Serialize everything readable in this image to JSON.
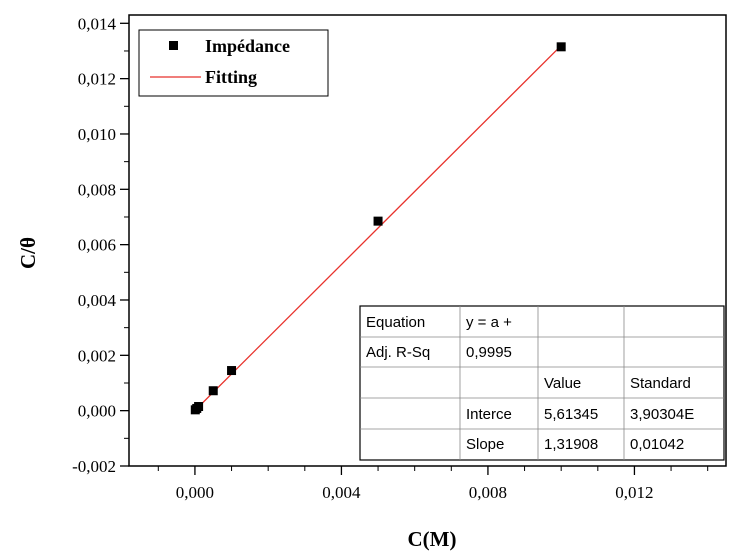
{
  "chart_data": {
    "type": "scatter",
    "xlabel": "C(M)",
    "ylabel": "C/θ",
    "xlim": [
      -0.0018,
      0.0145
    ],
    "ylim": [
      -0.002,
      0.0143
    ],
    "x_ticks": [
      {
        "value": 0.0,
        "label": "0,000"
      },
      {
        "value": 0.004,
        "label": "0,004"
      },
      {
        "value": 0.008,
        "label": "0,008"
      },
      {
        "value": 0.012,
        "label": "0,012"
      }
    ],
    "y_ticks": [
      {
        "value": -0.002,
        "label": "-0,002"
      },
      {
        "value": 0.0,
        "label": "0,000"
      },
      {
        "value": 0.002,
        "label": "0,002"
      },
      {
        "value": 0.004,
        "label": "0,004"
      },
      {
        "value": 0.006,
        "label": "0,006"
      },
      {
        "value": 0.008,
        "label": "0,008"
      },
      {
        "value": 0.01,
        "label": "0,010"
      },
      {
        "value": 0.012,
        "label": "0,012"
      },
      {
        "value": 0.014,
        "label": "0,014"
      }
    ],
    "series": [
      {
        "name": "Impédance",
        "kind": "scatter",
        "color": "#000000",
        "marker": "square",
        "x": [
          1e-05,
          5e-05,
          0.0001,
          0.0005,
          0.001,
          0.005,
          0.01
        ],
        "y": [
          3e-05,
          8e-05,
          0.00015,
          0.00072,
          0.00145,
          0.00685,
          0.01315
        ]
      },
      {
        "name": "Fitting",
        "kind": "line",
        "color": "#e8322c",
        "x": [
          0.0,
          0.01
        ],
        "y": [
          5.6e-06,
          0.0131964
        ]
      }
    ],
    "legend_position": "top-left",
    "table": {
      "rows": [
        [
          "Equation",
          "y = a +",
          "",
          ""
        ],
        [
          "Adj. R-Sq",
          "0,9995",
          "",
          ""
        ],
        [
          "",
          "",
          "Value",
          "Standard"
        ],
        [
          "",
          "Interce",
          "5,61345",
          "3,90304E"
        ],
        [
          "",
          "Slope",
          "1,31908",
          "0,01042"
        ]
      ],
      "position": "bottom-right"
    }
  }
}
